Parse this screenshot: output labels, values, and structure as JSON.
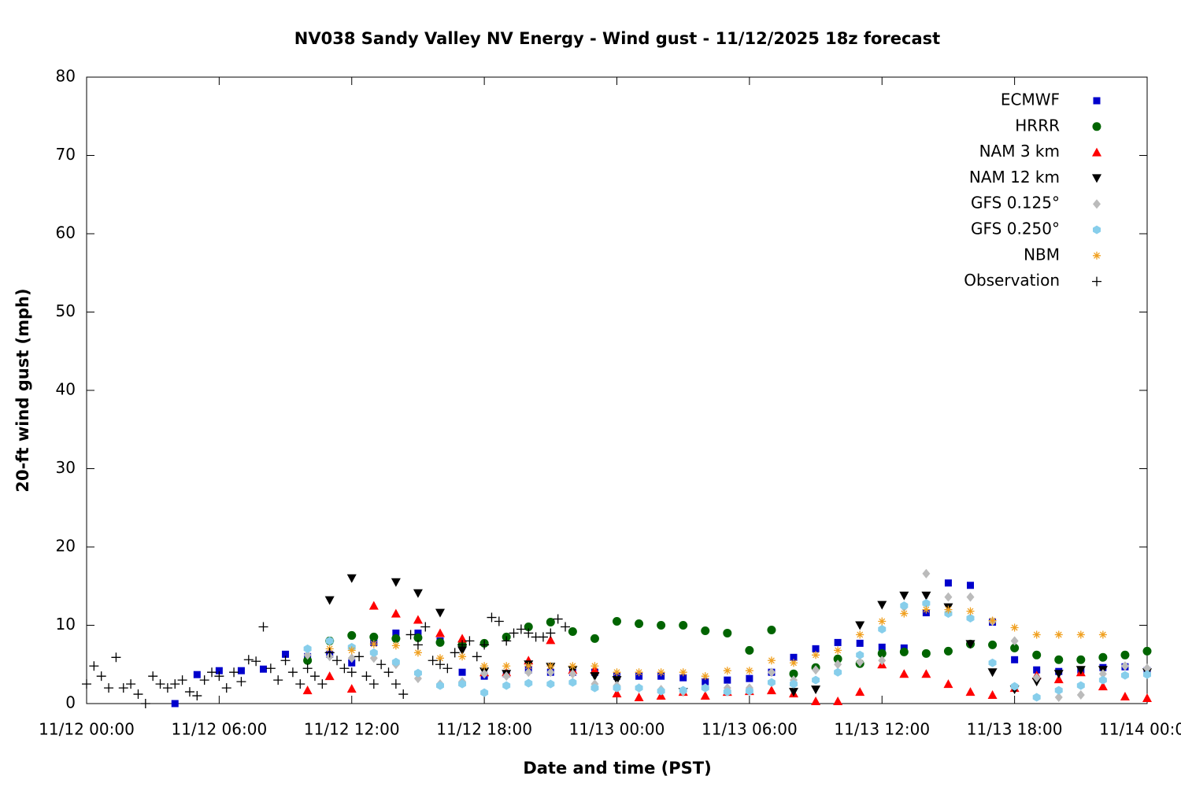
{
  "chart_data": {
    "type": "scatter",
    "title": "NV038 Sandy Valley NV Energy - Wind gust - 11/12/2025 18z forecast",
    "x_label": "Date and time (PST)",
    "y_label": "20-ft wind gust (mph)",
    "xlim": [
      "11/12 00:00",
      "11/14 00:00"
    ],
    "xticks": [
      "11/12 00:00",
      "11/12 06:00",
      "11/12 12:00",
      "11/12 18:00",
      "11/13 00:00",
      "11/13 06:00",
      "11/13 12:00",
      "11/13 18:00",
      "11/14 00:00"
    ],
    "ylim": [
      0,
      80
    ],
    "yticks": [
      0,
      10,
      20,
      30,
      40,
      50,
      60,
      70,
      80
    ],
    "legend": "top right",
    "series": [
      {
        "name": "ECMWF",
        "color": "#0000cc",
        "marker": "square",
        "x": [
          "11/12 04:00",
          "11/12 05:00",
          "11/12 06:00",
          "11/12 07:00",
          "11/12 08:00",
          "11/12 09:00",
          "11/12 10:00",
          "11/12 11:00",
          "11/12 12:00",
          "11/12 13:00",
          "11/12 14:00",
          "11/12 15:00",
          "11/12 16:00",
          "11/12 17:00",
          "11/12 18:00",
          "11/12 19:00",
          "11/12 20:00",
          "11/12 21:00",
          "11/12 22:00",
          "11/12 23:00",
          "11/13 00:00",
          "11/13 01:00",
          "11/13 02:00",
          "11/13 03:00",
          "11/13 04:00",
          "11/13 05:00",
          "11/13 06:00",
          "11/13 07:00",
          "11/13 08:00",
          "11/13 09:00",
          "11/13 10:00",
          "11/13 11:00",
          "11/13 12:00",
          "11/13 13:00",
          "11/13 14:00",
          "11/13 15:00",
          "11/13 16:00",
          "11/13 17:00",
          "11/13 18:00",
          "11/13 19:00",
          "11/13 20:00",
          "11/13 21:00",
          "11/13 22:00",
          "11/13 23:00",
          "11/14 00:00"
        ],
        "values": [
          0.0,
          3.7,
          4.2,
          4.2,
          4.4,
          6.3,
          6.0,
          6.3,
          5.2,
          7.8,
          9.0,
          9.0,
          8.0,
          4.0,
          3.5,
          3.8,
          4.3,
          4.0,
          4.0,
          4.0,
          3.5,
          3.5,
          3.5,
          3.3,
          2.8,
          3.0,
          3.2,
          4.0,
          5.9,
          7.0,
          7.8,
          7.7,
          7.2,
          7.1,
          11.6,
          15.4,
          15.1,
          10.4,
          5.6,
          4.3,
          4.1,
          4.3,
          4.6,
          4.7,
          4.2
        ]
      },
      {
        "name": "HRRR",
        "color": "#006400",
        "marker": "circle",
        "x": [
          "11/12 10:00",
          "11/12 11:00",
          "11/12 12:00",
          "11/12 13:00",
          "11/12 14:00",
          "11/12 15:00",
          "11/12 16:00",
          "11/12 17:00",
          "11/12 18:00",
          "11/12 19:00",
          "11/12 20:00",
          "11/12 21:00",
          "11/12 22:00",
          "11/12 23:00",
          "11/13 00:00",
          "11/13 01:00",
          "11/13 02:00",
          "11/13 03:00",
          "11/13 04:00",
          "11/13 05:00",
          "11/13 06:00",
          "11/13 07:00",
          "11/13 08:00",
          "11/13 09:00",
          "11/13 10:00",
          "11/13 11:00",
          "11/13 12:00",
          "11/13 13:00",
          "11/13 14:00",
          "11/13 15:00",
          "11/13 16:00",
          "11/13 17:00",
          "11/13 18:00",
          "11/13 19:00",
          "11/13 20:00",
          "11/13 21:00",
          "11/13 22:00",
          "11/13 23:00",
          "11/14 00:00"
        ],
        "values": [
          5.5,
          8.0,
          8.7,
          8.5,
          8.3,
          8.4,
          7.8,
          7.5,
          7.7,
          8.5,
          9.8,
          10.4,
          9.2,
          8.3,
          10.5,
          10.2,
          10.0,
          10.0,
          9.3,
          9.0,
          6.8,
          9.4,
          3.8,
          4.6,
          5.7,
          5.1,
          6.4,
          6.6,
          6.4,
          6.7,
          7.6,
          7.5,
          7.1,
          6.2,
          5.6,
          5.6,
          5.9,
          6.2,
          6.7
        ]
      },
      {
        "name": "NAM 3 km",
        "color": "#ff0000",
        "marker": "triangle-up",
        "x": [
          "11/12 10:00",
          "11/12 11:00",
          "11/12 12:00",
          "11/12 13:00",
          "11/12 14:00",
          "11/12 15:00",
          "11/12 16:00",
          "11/12 17:00",
          "11/12 18:00",
          "11/12 19:00",
          "11/12 20:00",
          "11/12 21:00",
          "11/12 22:00",
          "11/12 23:00",
          "11/13 00:00",
          "11/13 01:00",
          "11/13 02:00",
          "11/13 03:00",
          "11/13 04:00",
          "11/13 05:00",
          "11/13 06:00",
          "11/13 07:00",
          "11/13 08:00",
          "11/13 09:00",
          "11/13 10:00",
          "11/13 11:00",
          "11/13 12:00",
          "11/13 13:00",
          "11/13 14:00",
          "11/13 15:00",
          "11/13 16:00",
          "11/13 17:00",
          "11/13 18:00",
          "11/13 19:00",
          "11/13 20:00",
          "11/13 21:00",
          "11/13 22:00",
          "11/13 23:00",
          "11/14 00:00"
        ],
        "values": [
          1.7,
          3.5,
          1.9,
          12.5,
          11.5,
          10.7,
          9.0,
          8.3,
          4.0,
          4.0,
          5.5,
          8.1,
          4.3,
          4.3,
          1.3,
          0.8,
          1.0,
          1.5,
          1.0,
          1.5,
          1.6,
          1.7,
          1.3,
          0.3,
          0.3,
          1.5,
          5.0,
          3.8,
          3.8,
          2.5,
          1.5,
          1.1,
          2.0,
          3.6,
          3.1,
          4.0,
          2.2,
          0.9,
          0.7
        ]
      },
      {
        "name": "NAM 12 km",
        "color": "#000000",
        "marker": "triangle-down",
        "x": [
          "11/12 11:00",
          "11/12 12:00",
          "11/12 14:00",
          "11/12 15:00",
          "11/12 16:00",
          "11/12 17:00",
          "11/12 18:00",
          "11/12 19:00",
          "11/12 20:00",
          "11/12 21:00",
          "11/12 22:00",
          "11/12 23:00",
          "11/13 00:00",
          "11/13 03:00",
          "11/13 08:00",
          "11/13 09:00",
          "11/13 11:00",
          "11/13 12:00",
          "11/13 13:00",
          "11/13 14:00",
          "11/13 15:00",
          "11/13 16:00",
          "11/13 17:00",
          "11/13 18:00",
          "11/13 19:00",
          "11/13 20:00",
          "11/13 21:00",
          "11/13 22:00",
          "11/14 00:00"
        ],
        "values": [
          13.2,
          16.0,
          15.5,
          14.1,
          11.6,
          6.8,
          4.1,
          3.8,
          5.0,
          4.7,
          4.3,
          3.5,
          3.0,
          1.5,
          1.5,
          1.8,
          10.0,
          12.6,
          13.8,
          13.8,
          12.3,
          7.6,
          4.0,
          1.8,
          2.8,
          3.8,
          4.3,
          4.3,
          4.0
        ]
      },
      {
        "name": "GFS 0.125°",
        "color": "#bbbbbb",
        "marker": "diamond",
        "x": [
          "11/12 10:00",
          "11/12 11:00",
          "11/12 12:00",
          "11/12 13:00",
          "11/12 14:00",
          "11/12 15:00",
          "11/12 16:00",
          "11/12 17:00",
          "11/12 18:00",
          "11/12 19:00",
          "11/12 20:00",
          "11/12 21:00",
          "11/12 22:00",
          "11/12 23:00",
          "11/13 00:00",
          "11/13 01:00",
          "11/13 02:00",
          "11/13 03:00",
          "11/13 04:00",
          "11/13 05:00",
          "11/13 06:00",
          "11/13 07:00",
          "11/13 08:00",
          "11/13 09:00",
          "11/13 10:00",
          "11/13 11:00",
          "11/13 12:00",
          "11/13 13:00",
          "11/13 14:00",
          "11/13 15:00",
          "11/13 16:00",
          "11/13 17:00",
          "11/13 18:00",
          "11/13 19:00",
          "11/13 20:00",
          "11/13 21:00",
          "11/13 22:00",
          "11/13 23:00",
          "11/14 00:00"
        ],
        "values": [
          6.2,
          6.0,
          5.8,
          5.8,
          5.0,
          3.2,
          2.5,
          2.8,
          3.8,
          3.5,
          4.0,
          4.0,
          3.8,
          2.5,
          2.3,
          2.0,
          1.8,
          1.5,
          2.0,
          2.0,
          2.0,
          4.0,
          3.0,
          4.3,
          5.0,
          5.3,
          5.5,
          12.3,
          16.6,
          13.6,
          13.6,
          10.5,
          8.0,
          3.3,
          0.8,
          1.1,
          3.8,
          4.8,
          4.5
        ]
      },
      {
        "name": "GFS 0.250°",
        "color": "#87ceeb",
        "marker": "hexagon",
        "x": [
          "11/12 10:00",
          "11/12 11:00",
          "11/12 12:00",
          "11/12 13:00",
          "11/12 14:00",
          "11/12 15:00",
          "11/12 16:00",
          "11/12 17:00",
          "11/12 18:00",
          "11/12 19:00",
          "11/12 20:00",
          "11/12 21:00",
          "11/12 22:00",
          "11/12 23:00",
          "11/13 00:00",
          "11/13 01:00",
          "11/13 02:00",
          "11/13 03:00",
          "11/13 04:00",
          "11/13 05:00",
          "11/13 06:00",
          "11/13 07:00",
          "11/13 08:00",
          "11/13 09:00",
          "11/13 10:00",
          "11/13 11:00",
          "11/13 12:00",
          "11/13 13:00",
          "11/13 14:00",
          "11/13 15:00",
          "11/13 16:00",
          "11/13 17:00",
          "11/13 18:00",
          "11/13 19:00",
          "11/13 20:00",
          "11/13 21:00",
          "11/13 22:00",
          "11/13 23:00",
          "11/14 00:00"
        ],
        "values": [
          7.0,
          8.0,
          7.2,
          6.5,
          5.3,
          3.9,
          2.3,
          2.5,
          1.4,
          2.3,
          2.6,
          2.5,
          2.7,
          2.0,
          2.0,
          2.0,
          1.6,
          1.7,
          2.0,
          1.5,
          1.6,
          2.7,
          2.5,
          3.0,
          4.0,
          6.2,
          9.5,
          12.5,
          12.8,
          11.5,
          10.9,
          5.2,
          2.2,
          0.8,
          1.7,
          2.3,
          3.0,
          3.6,
          3.7
        ]
      },
      {
        "name": "NBM",
        "color": "#f0a020",
        "marker": "asterisk",
        "x": [
          "11/12 11:00",
          "11/12 12:00",
          "11/12 13:00",
          "11/12 14:00",
          "11/12 15:00",
          "11/12 16:00",
          "11/12 17:00",
          "11/12 18:00",
          "11/12 19:00",
          "11/12 20:00",
          "11/12 21:00",
          "11/12 22:00",
          "11/12 23:00",
          "11/13 00:00",
          "11/13 01:00",
          "11/13 02:00",
          "11/13 03:00",
          "11/13 04:00",
          "11/13 05:00",
          "11/13 06:00",
          "11/13 07:00",
          "11/13 08:00",
          "11/13 09:00",
          "11/13 10:00",
          "11/13 11:00",
          "11/13 12:00",
          "11/13 13:00",
          "11/13 14:00",
          "11/13 15:00",
          "11/13 16:00",
          "11/13 17:00",
          "11/13 18:00",
          "11/13 19:00",
          "11/13 20:00",
          "11/13 21:00",
          "11/13 22:00"
        ],
        "values": [
          7.0,
          6.8,
          7.6,
          7.4,
          6.5,
          5.8,
          6.0,
          4.8,
          4.8,
          4.8,
          4.8,
          4.8,
          4.8,
          4.0,
          4.0,
          4.0,
          4.0,
          3.5,
          4.2,
          4.2,
          5.5,
          5.2,
          6.2,
          6.8,
          8.8,
          10.5,
          11.5,
          12.0,
          12.0,
          11.8,
          10.6,
          9.7,
          8.8,
          8.8,
          8.8,
          8.8
        ]
      },
      {
        "name": "Observation",
        "color": "#000000",
        "marker": "plus",
        "x": [
          "11/12 00:00",
          "11/12 00:20",
          "11/12 00:40",
          "11/12 01:00",
          "11/12 01:20",
          "11/12 01:40",
          "11/12 02:00",
          "11/12 02:20",
          "11/12 02:40",
          "11/12 03:00",
          "11/12 03:20",
          "11/12 03:40",
          "11/12 04:00",
          "11/12 04:20",
          "11/12 04:40",
          "11/12 05:00",
          "11/12 05:20",
          "11/12 05:40",
          "11/12 06:00",
          "11/12 06:20",
          "11/12 06:40",
          "11/12 07:00",
          "11/12 07:20",
          "11/12 07:40",
          "11/12 08:00",
          "11/12 08:20",
          "11/12 08:40",
          "11/12 09:00",
          "11/12 09:20",
          "11/12 09:40",
          "11/12 10:00",
          "11/12 10:20",
          "11/12 10:40",
          "11/12 11:00",
          "11/12 11:20",
          "11/12 11:40",
          "11/12 12:00",
          "11/12 12:20",
          "11/12 12:40",
          "11/12 13:00",
          "11/12 13:20",
          "11/12 13:40",
          "11/12 14:00",
          "11/12 14:20",
          "11/12 14:40",
          "11/12 15:00",
          "11/12 15:20",
          "11/12 15:40",
          "11/12 16:00",
          "11/12 16:20",
          "11/12 16:40",
          "11/12 17:00",
          "11/12 17:20",
          "11/12 17:40",
          "11/12 18:00",
          "11/12 18:20",
          "11/12 18:40",
          "11/12 19:00",
          "11/12 19:20",
          "11/12 19:40",
          "11/12 20:00",
          "11/12 20:20",
          "11/12 20:40",
          "11/12 21:00",
          "11/12 21:20",
          "11/12 21:40"
        ],
        "values": [
          2.5,
          4.8,
          3.5,
          2.0,
          5.9,
          2.0,
          2.5,
          1.2,
          0.0,
          3.5,
          2.5,
          2.0,
          2.5,
          3.0,
          1.5,
          1.0,
          3.0,
          4.0,
          3.5,
          2.0,
          4.0,
          2.8,
          5.6,
          5.4,
          9.8,
          4.5,
          3.0,
          5.5,
          4.0,
          2.5,
          4.5,
          3.5,
          2.5,
          6.5,
          5.5,
          4.5,
          4.0,
          6.0,
          3.5,
          2.5,
          5.0,
          4.0,
          2.5,
          1.2,
          8.8,
          7.5,
          9.8,
          5.5,
          5.0,
          4.5,
          6.5,
          7.5,
          8.0,
          6.0,
          7.5,
          11.0,
          10.5,
          8.0,
          9.0,
          9.5,
          9.0,
          8.5,
          8.5,
          9.0,
          10.8,
          9.8
        ]
      }
    ]
  }
}
